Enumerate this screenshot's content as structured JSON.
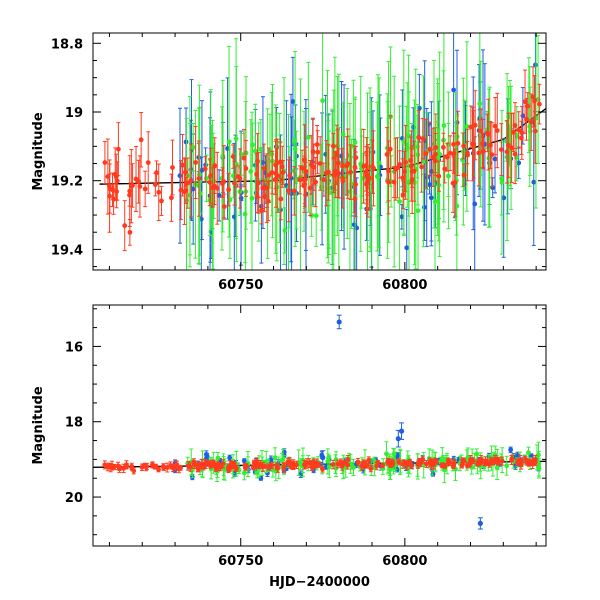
{
  "chart_data": [
    {
      "type": "scatter",
      "panel": "top",
      "xlabel": "",
      "ylabel": "Magnitude",
      "xlim": [
        60705,
        60843
      ],
      "ylim": [
        19.46,
        18.77
      ],
      "y_inverted": true,
      "x_ticks": [
        60750,
        60800
      ],
      "y_ticks": [
        18.8,
        19,
        19.2,
        19.4
      ],
      "x_tick_labels": [
        "60750",
        "60800"
      ],
      "y_tick_labels": [
        "18.8",
        "19",
        "19.2",
        "19.4"
      ],
      "grid": false,
      "series": [
        {
          "color": "#ff3b1f",
          "seed": 11,
          "x_range": [
            60707,
            60841
          ],
          "n": 200,
          "base": 19.2,
          "scatter": 0.04,
          "err": [
            0.03,
            0.11
          ]
        },
        {
          "color": "#33ee33",
          "seed": 23,
          "x_range": [
            60733,
            60841
          ],
          "n": 160,
          "base": 19.18,
          "scatter": 0.06,
          "err": [
            0.05,
            0.3
          ]
        },
        {
          "color": "#1e5fe0",
          "seed": 37,
          "x_range": [
            60730,
            60842
          ],
          "n": 90,
          "base": 19.22,
          "scatter": 0.09,
          "err": [
            0.02,
            0.25
          ]
        }
      ],
      "trend": {
        "x": [
          60707,
          60760,
          60800,
          60830,
          60843
        ],
        "y": [
          19.21,
          19.2,
          19.16,
          19.08,
          18.99
        ]
      }
    },
    {
      "type": "scatter",
      "panel": "bottom",
      "xlabel": "HJD−2400000",
      "ylabel": "Magnitude",
      "xlim": [
        60705,
        60843
      ],
      "ylim": [
        21.3,
        14.9
      ],
      "y_inverted": true,
      "x_ticks": [
        60750,
        60800
      ],
      "y_ticks": [
        16,
        18,
        20
      ],
      "x_tick_labels": [
        "60750",
        "60800"
      ],
      "y_tick_labels": [
        "16",
        "18",
        "20"
      ],
      "grid": false,
      "series": [
        {
          "color": "#ff3b1f",
          "seed": 41,
          "x_range": [
            60707,
            60841
          ],
          "n": 200,
          "base": 19.2,
          "scatter": 0.05,
          "err": [
            0.05,
            0.12
          ]
        },
        {
          "color": "#33ee33",
          "seed": 53,
          "x_range": [
            60733,
            60841
          ],
          "n": 150,
          "base": 19.15,
          "scatter": 0.1,
          "err": [
            0.08,
            0.35
          ]
        },
        {
          "color": "#1e5fe0",
          "seed": 67,
          "x_range": [
            60730,
            60842
          ],
          "n": 80,
          "base": 19.25,
          "scatter": 0.13,
          "err": [
            0.05,
            0.1
          ]
        }
      ],
      "outliers": [
        {
          "color": "#1e5fe0",
          "x": 60780,
          "y": 15.35,
          "err": 0.18
        },
        {
          "color": "#1e5fe0",
          "x": 60798,
          "y": 18.45,
          "err": 0.22
        },
        {
          "color": "#1e5fe0",
          "x": 60799,
          "y": 18.25,
          "err": 0.22
        },
        {
          "color": "#1e5fe0",
          "x": 60823,
          "y": 20.7,
          "err": 0.15
        },
        {
          "color": "#1e5fe0",
          "x": 60775,
          "y": 18.95,
          "err": 0.18
        }
      ],
      "trend": {
        "x": [
          60705,
          60843
        ],
        "y": [
          19.21,
          19.05
        ]
      }
    }
  ]
}
